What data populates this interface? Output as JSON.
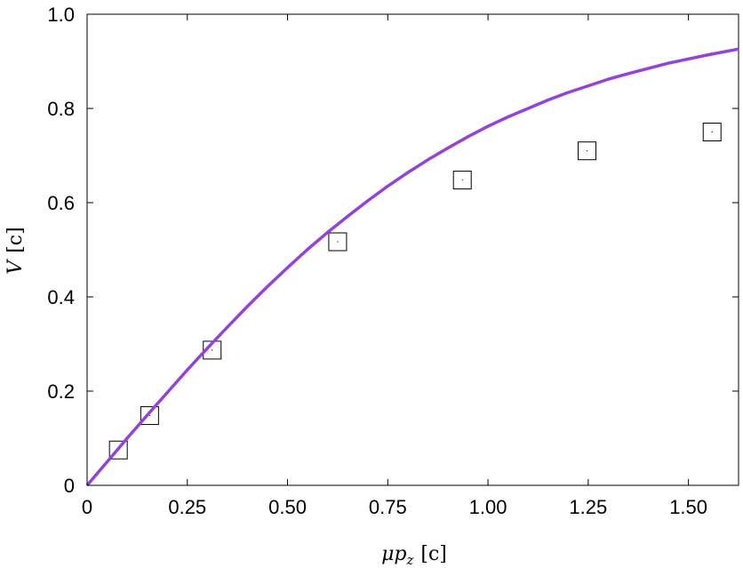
{
  "chart_data": {
    "type": "scatter",
    "title": "",
    "xlabel": {
      "symbol": "μp",
      "sub": "z",
      "unit": "[c]"
    },
    "ylabel": {
      "symbol": "V",
      "unit": "[c]"
    },
    "xlim": [
      0,
      1.625
    ],
    "ylim": [
      0,
      1.0
    ],
    "x_ticks": [
      "0",
      "0.25",
      "0.50",
      "0.75",
      "1.00",
      "1.25",
      "1.50"
    ],
    "x_tick_values": [
      0,
      0.25,
      0.5,
      0.75,
      1.0,
      1.25,
      1.5
    ],
    "y_ticks": [
      "0",
      "0.2",
      "0.4",
      "0.6",
      "0.8",
      "1.0"
    ],
    "y_tick_values": [
      0,
      0.2,
      0.4,
      0.6,
      0.8,
      1.0
    ],
    "grid": false,
    "series": [
      {
        "kind": "markers",
        "marker": "square",
        "color": "#000000",
        "points": [
          {
            "x": 0.078,
            "y": 0.075
          },
          {
            "x": 0.156,
            "y": 0.148
          },
          {
            "x": 0.312,
            "y": 0.287
          },
          {
            "x": 0.625,
            "y": 0.517
          },
          {
            "x": 0.936,
            "y": 0.648
          },
          {
            "x": 1.247,
            "y": 0.71
          },
          {
            "x": 1.559,
            "y": 0.75
          }
        ]
      },
      {
        "kind": "line",
        "color": "#9542d9",
        "x": [
          0,
          0.05,
          0.1,
          0.15,
          0.2,
          0.25,
          0.3,
          0.35,
          0.4,
          0.45,
          0.5,
          0.55,
          0.6,
          0.65,
          0.7,
          0.75,
          0.8,
          0.85,
          0.9,
          0.95,
          1.0,
          1.05,
          1.1,
          1.15,
          1.2,
          1.25,
          1.3,
          1.35,
          1.4,
          1.45,
          1.5,
          1.55,
          1.6,
          1.625
        ],
        "y": [
          0,
          0.05,
          0.1,
          0.149,
          0.197,
          0.245,
          0.291,
          0.336,
          0.38,
          0.422,
          0.462,
          0.501,
          0.537,
          0.571,
          0.604,
          0.635,
          0.664,
          0.691,
          0.716,
          0.74,
          0.762,
          0.782,
          0.8,
          0.818,
          0.834,
          0.848,
          0.862,
          0.874,
          0.885,
          0.896,
          0.905,
          0.914,
          0.922,
          0.926
        ]
      }
    ]
  }
}
